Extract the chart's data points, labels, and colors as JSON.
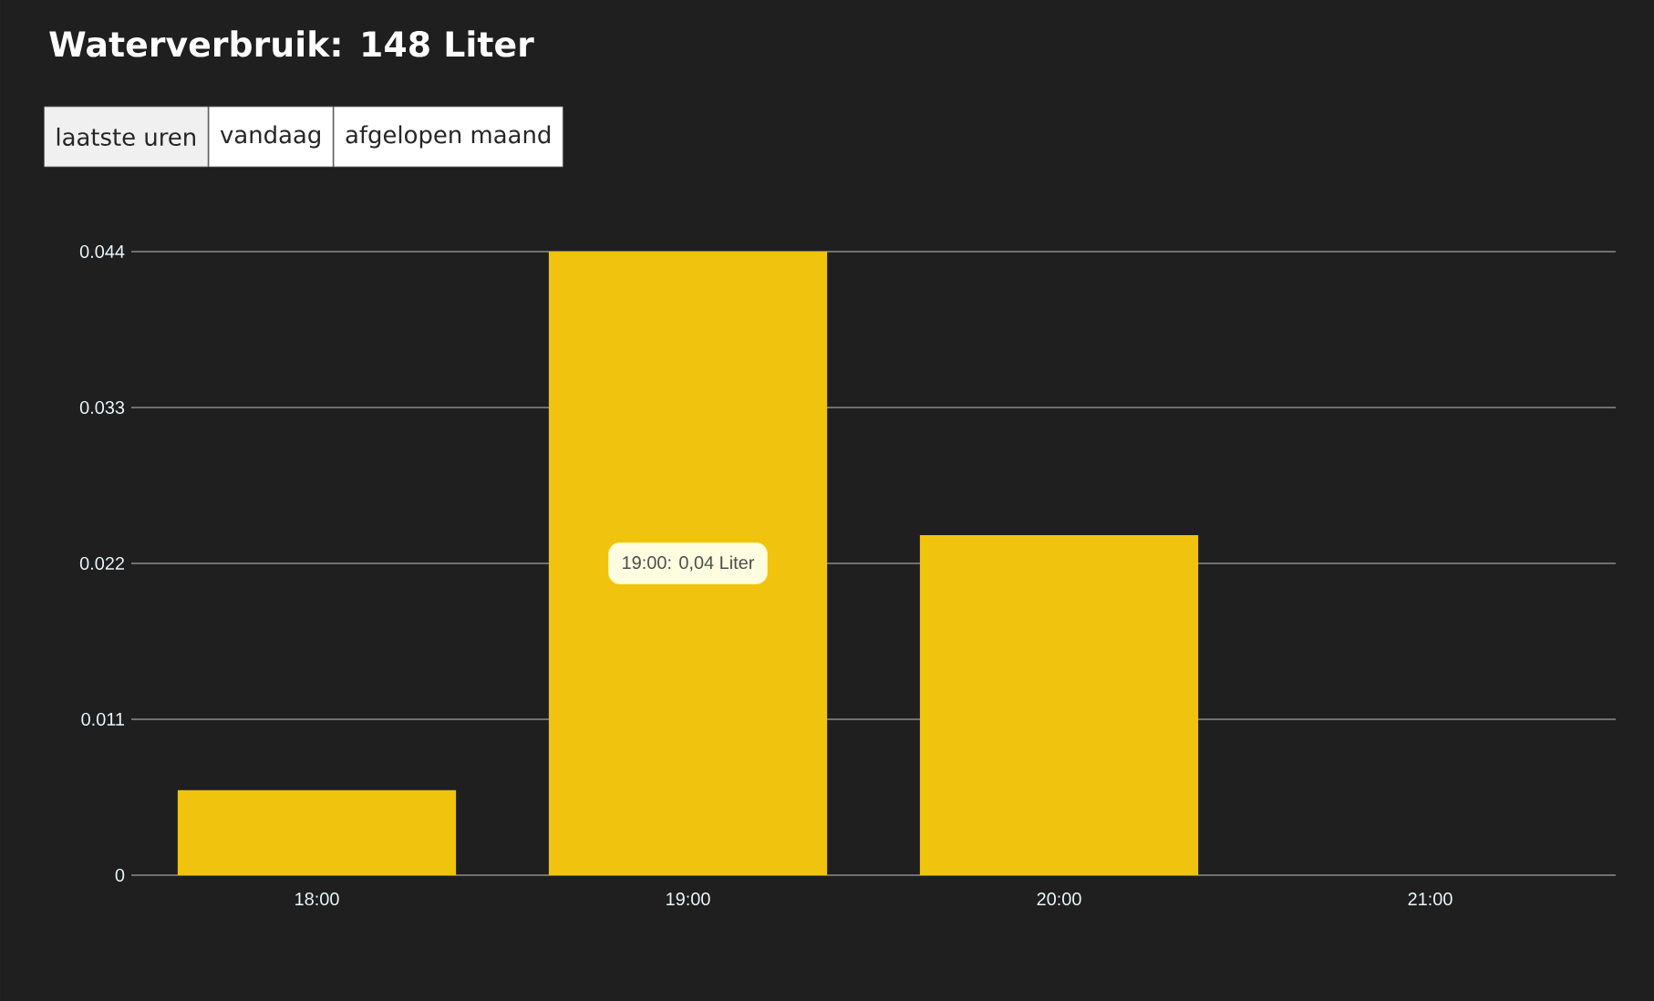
{
  "chart_data": {
    "type": "bar",
    "title": "Waterverbruik: 148 Liter",
    "annotations": [
      "laatste uren",
      "vandaag",
      "afgelopen maand",
      "19:00: 0,04 Liter"
    ],
    "categories": [
      "18:00",
      "19:00",
      "20:00",
      "21:00"
    ],
    "values": [
      0.006,
      0.044,
      0.024,
      0
    ],
    "color": "#f0c30f",
    "ylim": [
      0,
      0.044
    ],
    "yticks": [
      0,
      0.011,
      0.022,
      0.033,
      0.044
    ],
    "grid": "y"
  }
}
